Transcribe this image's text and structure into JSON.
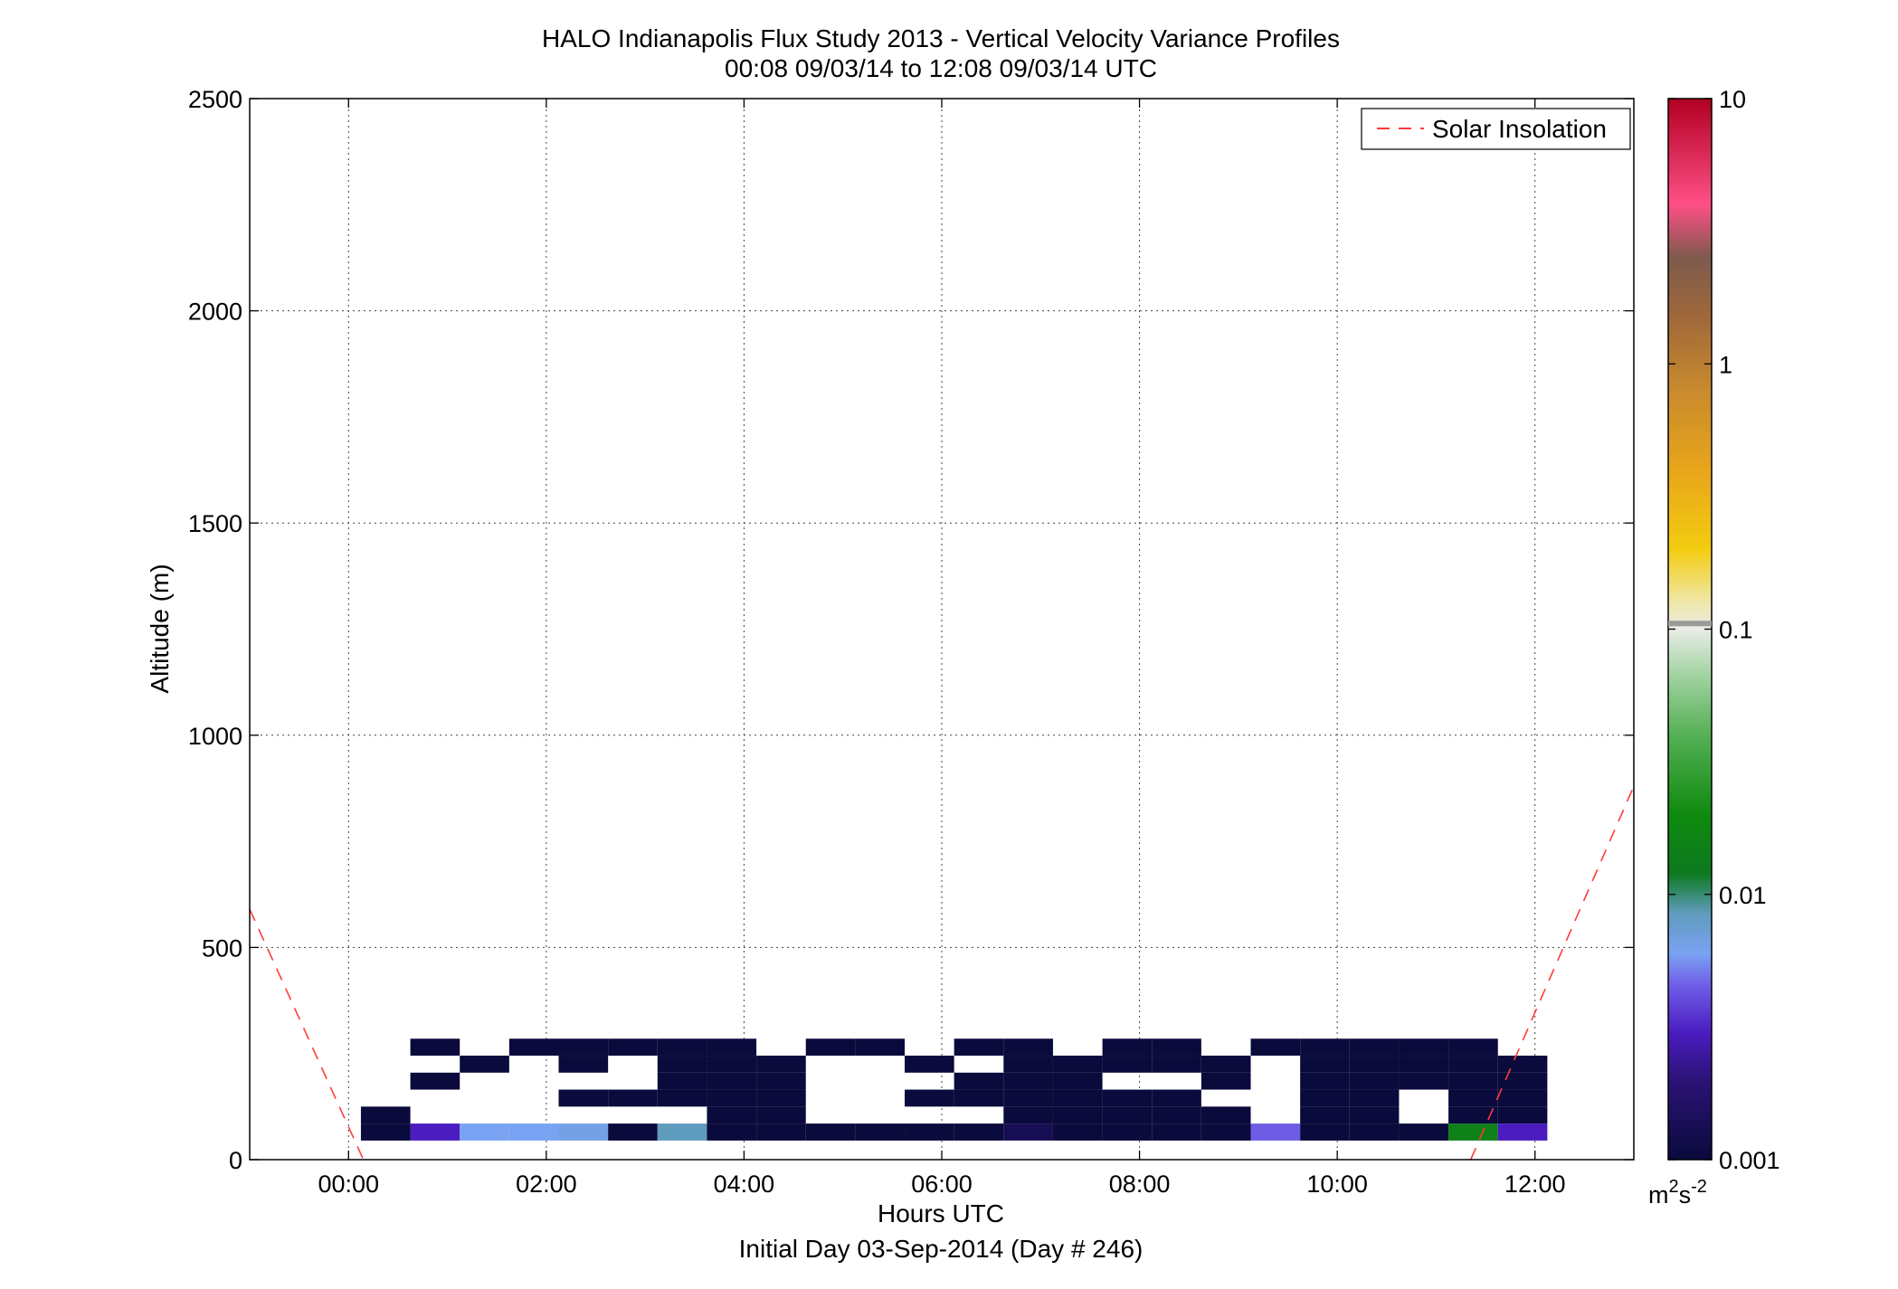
{
  "chart_data": {
    "type": "heatmap",
    "title": "HALO Indianapolis Flux Study 2013 - Vertical Velocity Variance Profiles",
    "subtitle": "00:08 09/03/14 to 12:08 09/03/14  UTC",
    "xlabel": "Hours UTC",
    "xlabel2": "Initial Day 03-Sep-2014 (Day # 246)",
    "ylabel": "Altitude (m)",
    "xlim_hours": [
      -1.0,
      13.0
    ],
    "ylim": [
      0,
      2500
    ],
    "x_ticks": [
      {
        "value": 0,
        "label": "00:00"
      },
      {
        "value": 2,
        "label": "02:00"
      },
      {
        "value": 4,
        "label": "04:00"
      },
      {
        "value": 6,
        "label": "06:00"
      },
      {
        "value": 8,
        "label": "08:00"
      },
      {
        "value": 10,
        "label": "10:00"
      },
      {
        "value": 12,
        "label": "12:00"
      }
    ],
    "y_ticks": [
      {
        "value": 0,
        "label": "0"
      },
      {
        "value": 500,
        "label": "500"
      },
      {
        "value": 1000,
        "label": "1000"
      },
      {
        "value": 1500,
        "label": "1500"
      },
      {
        "value": 2000,
        "label": "2000"
      },
      {
        "value": 2500,
        "label": "2500"
      }
    ],
    "grid": true,
    "legend": {
      "position": "top-right",
      "entries": [
        {
          "name": "Solar Insolation",
          "color": "#ff3b3b",
          "style": "dashed"
        }
      ]
    },
    "colorbar": {
      "scale": "log",
      "range": [
        0.001,
        10
      ],
      "unit_base": "m",
      "unit_sup1": "2",
      "unit_mid": "s",
      "unit_sup2": "-2",
      "ticks": [
        {
          "value": 0.001,
          "label": "0.001"
        },
        {
          "value": 0.01,
          "label": "0.01"
        },
        {
          "value": 0.1,
          "label": "0.1"
        },
        {
          "value": 1,
          "label": "1"
        },
        {
          "value": 10,
          "label": "10"
        }
      ],
      "stops": [
        {
          "value": 0.001,
          "color": "#0a0a3c"
        },
        {
          "value": 0.002,
          "color": "#2c1377"
        },
        {
          "value": 0.003,
          "color": "#4b1cc0"
        },
        {
          "value": 0.0045,
          "color": "#6f5ce6"
        },
        {
          "value": 0.006,
          "color": "#7aa2f2"
        },
        {
          "value": 0.0085,
          "color": "#5f9bbd"
        },
        {
          "value": 0.012,
          "color": "#0d7a1f"
        },
        {
          "value": 0.02,
          "color": "#0f8a0f"
        },
        {
          "value": 0.04,
          "color": "#55b055"
        },
        {
          "value": 0.07,
          "color": "#a9d6a9"
        },
        {
          "value": 0.1,
          "color": "#e9ece6"
        },
        {
          "value": 0.13,
          "color": "#f0e6a0"
        },
        {
          "value": 0.2,
          "color": "#f3cc10"
        },
        {
          "value": 0.4,
          "color": "#e8a51a"
        },
        {
          "value": 0.8,
          "color": "#c88a2e"
        },
        {
          "value": 1.5,
          "color": "#a0683a"
        },
        {
          "value": 2.5,
          "color": "#7d5a4c"
        },
        {
          "value": 4,
          "color": "#ff4f86"
        },
        {
          "value": 10,
          "color": "#b10022"
        }
      ]
    },
    "solar_insolation_lines": [
      {
        "x": [
          -1.0,
          0.15
        ],
        "y": [
          590,
          0
        ]
      },
      {
        "x": [
          11.35,
          13.0
        ],
        "y": [
          0,
          880
        ]
      }
    ],
    "grid_cells": {
      "time_bin_start_hour": 0.125,
      "time_bin_width_hour": 0.5,
      "altitude_bin_start_m": 45,
      "altitude_bin_height_m": 40,
      "note_values": "value = variance in m^2 s^-2 for each [time_bin, alt_bin]"
    },
    "cells": [
      [
        0,
        0,
        0.001
      ],
      [
        1,
        0,
        0.003
      ],
      [
        2,
        0,
        0.006
      ],
      [
        3,
        0,
        0.006
      ],
      [
        4,
        0,
        0.0065
      ],
      [
        5,
        0,
        0.001
      ],
      [
        6,
        0,
        0.0085
      ],
      [
        7,
        0,
        0.001
      ],
      [
        8,
        0,
        0.001
      ],
      [
        9,
        0,
        0.001
      ],
      [
        10,
        0,
        0.001
      ],
      [
        11,
        0,
        0.001
      ],
      [
        12,
        0,
        0.001
      ],
      [
        13,
        0,
        0.0013
      ],
      [
        14,
        0,
        0.001
      ],
      [
        15,
        0,
        0.001
      ],
      [
        16,
        0,
        0.001
      ],
      [
        17,
        0,
        0.001
      ],
      [
        18,
        0,
        0.0045
      ],
      [
        19,
        0,
        0.001
      ],
      [
        20,
        0,
        0.001
      ],
      [
        21,
        0,
        0.001
      ],
      [
        22,
        0,
        0.015
      ],
      [
        23,
        0,
        0.003
      ],
      [
        0,
        1,
        0.001
      ],
      [
        7,
        1,
        0.001
      ],
      [
        8,
        1,
        0.001
      ],
      [
        13,
        1,
        0.001
      ],
      [
        14,
        1,
        0.001
      ],
      [
        15,
        1,
        0.001
      ],
      [
        16,
        1,
        0.001
      ],
      [
        17,
        1,
        0.001
      ],
      [
        19,
        1,
        0.001
      ],
      [
        20,
        1,
        0.001
      ],
      [
        22,
        1,
        0.001
      ],
      [
        23,
        1,
        0.001
      ],
      [
        4,
        2,
        0.001
      ],
      [
        5,
        2,
        0.001
      ],
      [
        6,
        2,
        0.001
      ],
      [
        7,
        2,
        0.001
      ],
      [
        8,
        2,
        0.001
      ],
      [
        11,
        2,
        0.001
      ],
      [
        12,
        2,
        0.001
      ],
      [
        13,
        2,
        0.001
      ],
      [
        14,
        2,
        0.001
      ],
      [
        15,
        2,
        0.001
      ],
      [
        16,
        2,
        0.001
      ],
      [
        19,
        2,
        0.001
      ],
      [
        20,
        2,
        0.001
      ],
      [
        22,
        2,
        0.001
      ],
      [
        23,
        2,
        0.001
      ],
      [
        1,
        3,
        0.001
      ],
      [
        6,
        3,
        0.001
      ],
      [
        7,
        3,
        0.001
      ],
      [
        8,
        3,
        0.001
      ],
      [
        12,
        3,
        0.001
      ],
      [
        13,
        3,
        0.001
      ],
      [
        14,
        3,
        0.001
      ],
      [
        17,
        3,
        0.001
      ],
      [
        19,
        3,
        0.001
      ],
      [
        20,
        3,
        0.001
      ],
      [
        21,
        3,
        0.001
      ],
      [
        22,
        3,
        0.001
      ],
      [
        23,
        3,
        0.001
      ],
      [
        2,
        4,
        0.001
      ],
      [
        4,
        4,
        0.001
      ],
      [
        6,
        4,
        0.001
      ],
      [
        7,
        4,
        0.001
      ],
      [
        8,
        4,
        0.001
      ],
      [
        11,
        4,
        0.001
      ],
      [
        13,
        4,
        0.001
      ],
      [
        14,
        4,
        0.001
      ],
      [
        15,
        4,
        0.001
      ],
      [
        16,
        4,
        0.001
      ],
      [
        17,
        4,
        0.001
      ],
      [
        19,
        4,
        0.001
      ],
      [
        20,
        4,
        0.001
      ],
      [
        21,
        4,
        0.001
      ],
      [
        22,
        4,
        0.001
      ],
      [
        23,
        4,
        0.001
      ],
      [
        1,
        5,
        0.001
      ],
      [
        3,
        5,
        0.001
      ],
      [
        4,
        5,
        0.001
      ],
      [
        5,
        5,
        0.001
      ],
      [
        6,
        5,
        0.001
      ],
      [
        7,
        5,
        0.001
      ],
      [
        9,
        5,
        0.001
      ],
      [
        10,
        5,
        0.001
      ],
      [
        12,
        5,
        0.001
      ],
      [
        13,
        5,
        0.001
      ],
      [
        15,
        5,
        0.001
      ],
      [
        16,
        5,
        0.001
      ],
      [
        18,
        5,
        0.001
      ],
      [
        19,
        5,
        0.001
      ],
      [
        20,
        5,
        0.001
      ],
      [
        21,
        5,
        0.001
      ],
      [
        22,
        5,
        0.001
      ]
    ]
  }
}
